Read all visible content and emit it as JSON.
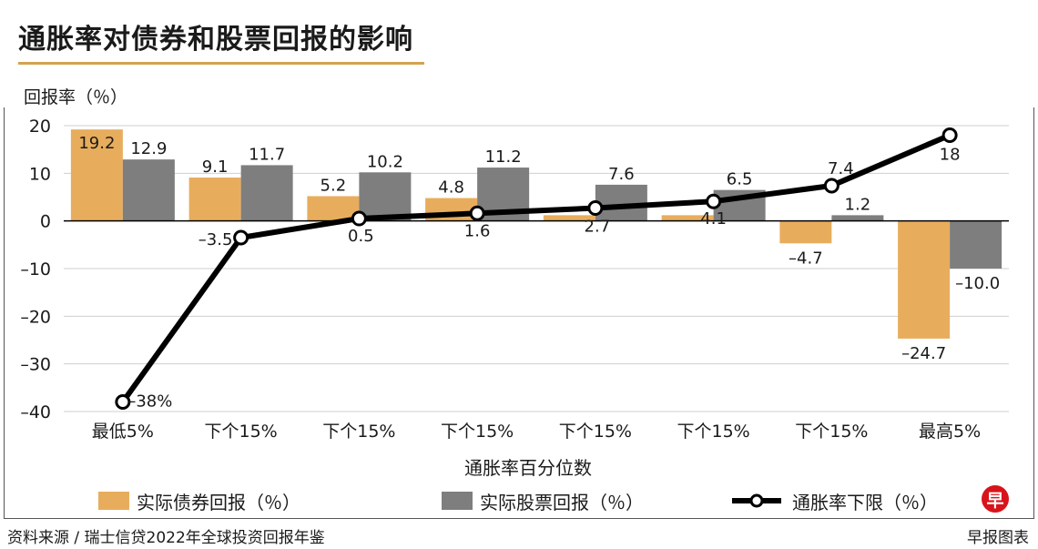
{
  "title": "通胀率对债券和股票回报的影响",
  "source": "资料来源 / 瑞士信贷2022年全球投资回报年鉴",
  "brand": "早报图表",
  "logo_char": "早",
  "colors": {
    "bond": "#e8ad5c",
    "stock": "#7e7e7e",
    "line": "#000000",
    "accent": "#d4a24f",
    "logo": "#d7141a"
  },
  "chart_data": {
    "type": "bar",
    "ylabel": "回报率（％）",
    "xlabel": "通胀率百分位数",
    "ylim": [
      -40,
      20
    ],
    "yticks": [
      20,
      10,
      0,
      -10,
      -20,
      -30,
      -40
    ],
    "ytick_labels": [
      "20",
      "10",
      "0",
      "–10",
      "–20",
      "–30",
      "–40"
    ],
    "categories": [
      "最低5%",
      "下个15%",
      "下个15%",
      "下个15%",
      "下个15%",
      "下个15%",
      "下个15%",
      "最高5%"
    ],
    "series": [
      {
        "name": "实际债券回报（％）",
        "kind": "bar",
        "values": [
          19.2,
          9.1,
          5.2,
          4.8,
          1.2,
          1.2,
          -4.7,
          -24.7
        ],
        "labels": [
          "19.2",
          "9.1",
          "5.2",
          "4.8",
          "",
          "",
          "–4.7",
          "–24.7"
        ]
      },
      {
        "name": "实际股票回报（％）",
        "kind": "bar",
        "values": [
          12.9,
          11.7,
          10.2,
          11.2,
          7.6,
          6.5,
          1.2,
          -10.0
        ],
        "labels": [
          "12.9",
          "11.7",
          "10.2",
          "11.2",
          "7.6",
          "6.5",
          "1.2",
          "–10.0"
        ]
      },
      {
        "name": "通胀率下限（％）",
        "kind": "line",
        "values": [
          -38,
          -3.5,
          0.5,
          1.6,
          2.7,
          4.1,
          7.4,
          18
        ],
        "labels": [
          "–38%",
          "–3.5",
          "0.5",
          "1.6",
          "2.7",
          "4.1",
          "7.4",
          "18"
        ]
      }
    ],
    "grid": true,
    "legend": "bottom"
  }
}
